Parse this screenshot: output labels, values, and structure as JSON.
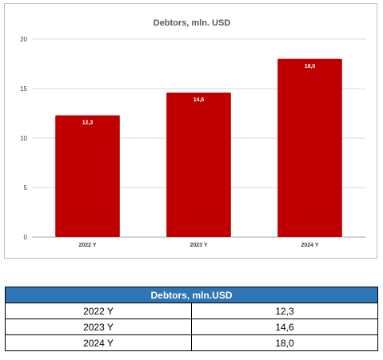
{
  "chart_data": {
    "type": "bar",
    "title": "Debtors, mln. USD",
    "categories": [
      "2022 Y",
      "2023 Y",
      "2024 Y"
    ],
    "values": [
      12.3,
      14.6,
      18.0
    ],
    "value_labels": [
      "12,3",
      "14,6",
      "18,0"
    ],
    "yticks": [
      "0",
      "5",
      "10",
      "15",
      "20"
    ],
    "ylim": [
      0,
      20
    ],
    "grid": true,
    "legend": "none",
    "bar_color": "#c00000"
  },
  "table": {
    "header": "Debtors, mln.USD",
    "rows": [
      {
        "year": "2022 Y",
        "value": "12,3"
      },
      {
        "year": "2023 Y",
        "value": "14,6"
      },
      {
        "year": "2024 Y",
        "value": "18,0"
      }
    ]
  }
}
